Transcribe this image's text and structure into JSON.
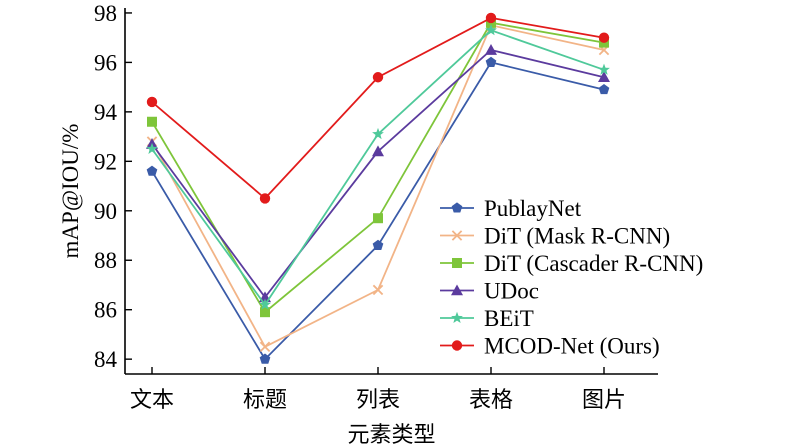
{
  "chart_data": {
    "type": "line",
    "xlabel": "元素类型",
    "ylabel": "mAP@IOU/%",
    "categories": [
      "文本",
      "标题",
      "列表",
      "表格",
      "图片"
    ],
    "yticks": [
      84,
      86,
      88,
      90,
      92,
      94,
      96,
      98
    ],
    "ylim": [
      83.4,
      98.2
    ],
    "grid": false,
    "legend_position": "lower-right",
    "series": [
      {
        "name": "PublayNet",
        "color": "#3a5ba8",
        "marker": "pentagon",
        "values": [
          91.6,
          84.0,
          88.6,
          96.0,
          94.9
        ]
      },
      {
        "name": "DiT (Mask R-CNN)",
        "color": "#f2b487",
        "marker": "x",
        "values": [
          92.8,
          84.5,
          86.8,
          97.5,
          96.5
        ]
      },
      {
        "name": "DiT (Cascader R-CNN)",
        "color": "#7ec53a",
        "marker": "square",
        "values": [
          93.6,
          85.9,
          89.7,
          97.6,
          96.8
        ]
      },
      {
        "name": "UDoc",
        "color": "#5b3b9e",
        "marker": "triangle",
        "values": [
          92.7,
          86.5,
          92.4,
          96.5,
          95.4
        ]
      },
      {
        "name": "BEiT",
        "color": "#4fc99a",
        "marker": "star",
        "values": [
          92.5,
          86.2,
          93.1,
          97.3,
          95.7
        ]
      },
      {
        "name": "MCOD-Net (Ours)",
        "color": "#e21b1b",
        "marker": "circle",
        "values": [
          94.4,
          90.5,
          95.4,
          97.8,
          97.0
        ]
      }
    ]
  }
}
